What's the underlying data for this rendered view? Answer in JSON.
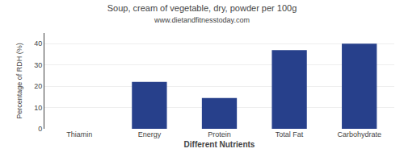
{
  "chart_data": {
    "type": "bar",
    "title": "Soup, cream of vegetable, dry, powder per 100g",
    "subtitle": "www.dietandfitnesstoday.com",
    "xlabel": "Different Nutrients",
    "ylabel": "Percentage of RDH (%)",
    "categories": [
      "Thiamin",
      "Energy",
      "Protein",
      "Total Fat",
      "Carbohydrate"
    ],
    "values": [
      0,
      22,
      14.5,
      37,
      40
    ],
    "color": "#27408B",
    "ylim": [
      0,
      45
    ],
    "yticks": [
      0,
      10,
      20,
      30,
      40
    ],
    "grid": true
  }
}
